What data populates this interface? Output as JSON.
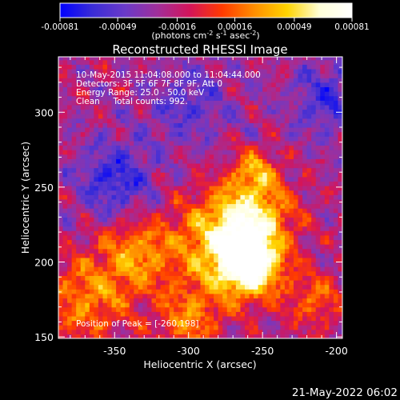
{
  "colorbar": {
    "tick_labels": [
      "-0.00081",
      "-0.00049",
      "-0.00016",
      "0.00016",
      "0.00049",
      "0.00081"
    ],
    "range": [
      -0.00081,
      0.00081
    ],
    "unit_parts": [
      "(photons cm",
      "-2",
      " s",
      "-1",
      " asec",
      "-2",
      ")"
    ],
    "colormap": [
      "#0000ff",
      "#3a2cd6",
      "#6a3ac9",
      "#a02f9a",
      "#d4145a",
      "#ff3a00",
      "#ff8f00",
      "#ffd400",
      "#ffffd8",
      "#ffffff"
    ]
  },
  "chart_data": {
    "type": "heatmap",
    "title": "Reconstructed RHESSI Image",
    "xlabel": "Heliocentric X (arcsec)",
    "ylabel": "Heliocentric Y (arcsec)",
    "xlim": [
      -388,
      -196
    ],
    "ylim": [
      149,
      337
    ],
    "x_ticks": [
      -350,
      -300,
      -250,
      -200
    ],
    "y_ticks": [
      150,
      200,
      250,
      300
    ],
    "peak": {
      "x": -260,
      "y": 198
    },
    "annotations": [
      "10-May-2015 11:04:08.000 to 11:04:44.000",
      "Detectors: 3F 5F 6F 7F 8F 9F, Att 0",
      "Energy Range: 25.0 - 50.0 keV",
      "Clean     Total counts: 992."
    ],
    "peak_label": "Position of Peak = [-260,198]",
    "grid": false
  },
  "footer": {
    "timestamp": "21-May-2022 06:02"
  }
}
